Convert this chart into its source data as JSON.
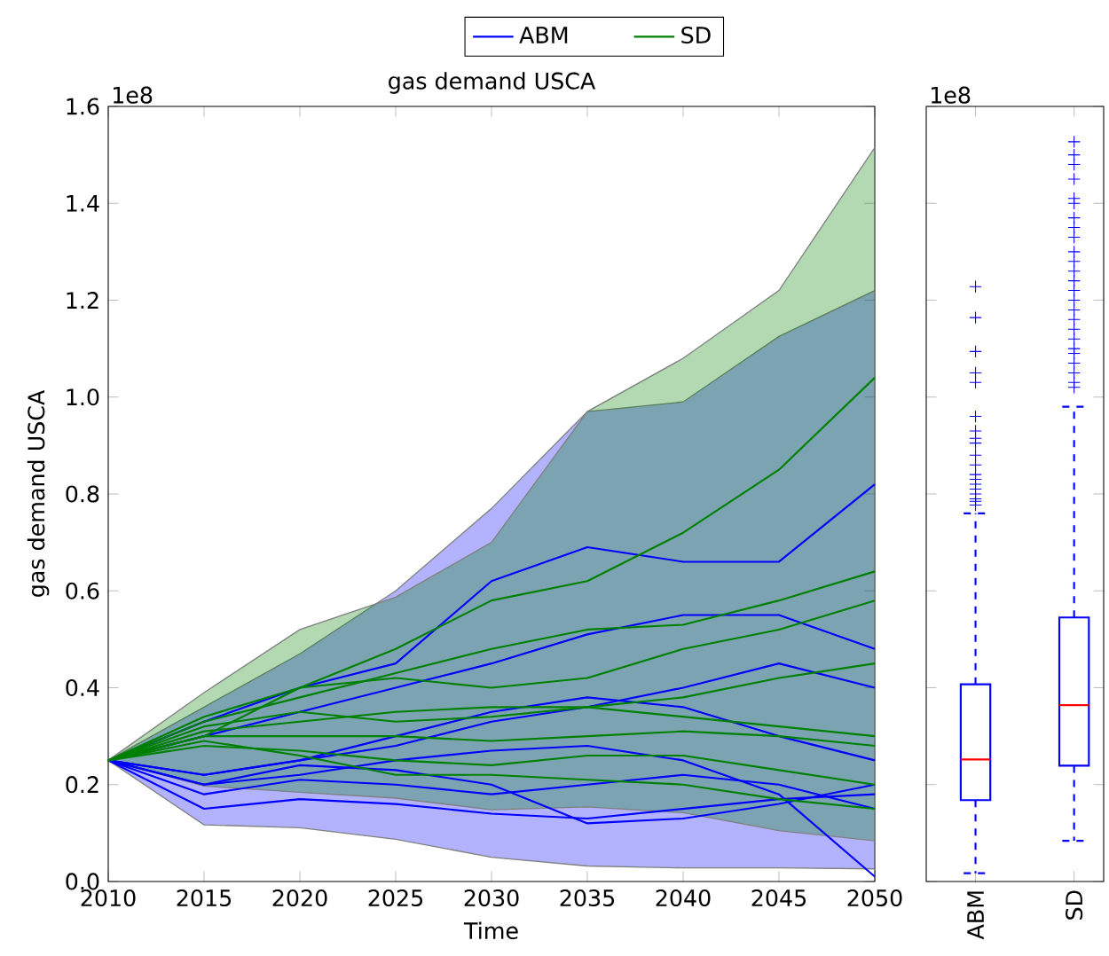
{
  "chart_data": [
    {
      "type": "line",
      "title": "gas demand USCA",
      "xlabel": "Time",
      "ylabel": "gas demand USCA",
      "annotations": [
        "1e8"
      ],
      "legend": "top",
      "xlim": [
        2010,
        2050
      ],
      "xticks": [
        2010,
        2015,
        2020,
        2025,
        2030,
        2035,
        2040,
        2045,
        2050
      ],
      "ylim": [
        0,
        1.6
      ],
      "yticks": [
        {
          "value": 0,
          "label": "0.0"
        },
        0.2,
        0.4,
        0.6,
        0.8,
        {
          "value": 1,
          "label": "1.0"
        },
        1.2,
        1.4,
        1.6
      ],
      "series": [
        {
          "name": "ABM",
          "color": "#0000ff",
          "x": [
            2010,
            2015,
            2020,
            2025,
            2030,
            2035,
            2040,
            2045,
            2050
          ],
          "values": [
            0.25,
            0.33,
            0.4,
            0.45,
            0.62,
            0.69,
            0.66,
            0.66,
            0.82
          ],
          "lower": [
            0.25,
            0.117,
            0.111,
            0.087,
            0.05,
            0.032,
            0.028,
            0.028,
            0.026
          ],
          "upper": [
            0.25,
            0.36,
            0.47,
            0.6,
            0.77,
            0.97,
            0.99,
            1.125,
            1.22
          ]
        },
        {
          "color": "#0000ff",
          "x": [
            2010,
            2015,
            2020,
            2025,
            2030,
            2035,
            2040,
            2045,
            2050
          ],
          "values": [
            0.25,
            0.3,
            0.35,
            0.4,
            0.45,
            0.51,
            0.55,
            0.55,
            0.48
          ]
        },
        {
          "color": "#0000ff",
          "x": [
            2010,
            2015,
            2020,
            2025,
            2030,
            2035,
            2040,
            2045,
            2050
          ],
          "values": [
            0.25,
            0.22,
            0.25,
            0.28,
            0.33,
            0.36,
            0.4,
            0.45,
            0.4
          ]
        },
        {
          "color": "#0000ff",
          "x": [
            2010,
            2015,
            2020,
            2025,
            2030,
            2035,
            2040,
            2045,
            2050
          ],
          "values": [
            0.25,
            0.2,
            0.22,
            0.25,
            0.27,
            0.28,
            0.25,
            0.18,
            0.01
          ]
        },
        {
          "color": "#0000ff",
          "x": [
            2010,
            2015,
            2020,
            2025,
            2030,
            2035,
            2040,
            2045,
            2050
          ],
          "values": [
            0.25,
            0.18,
            0.21,
            0.2,
            0.18,
            0.2,
            0.22,
            0.2,
            0.15
          ]
        },
        {
          "color": "#0000ff",
          "x": [
            2010,
            2015,
            2020,
            2025,
            2030,
            2035,
            2040,
            2045,
            2050
          ],
          "values": [
            0.25,
            0.15,
            0.17,
            0.16,
            0.14,
            0.13,
            0.15,
            0.17,
            0.18
          ]
        },
        {
          "color": "#0000ff",
          "x": [
            2010,
            2015,
            2020,
            2025,
            2030,
            2035,
            2040,
            2045,
            2050
          ],
          "values": [
            0.25,
            0.2,
            0.24,
            0.23,
            0.2,
            0.12,
            0.13,
            0.16,
            0.2
          ]
        },
        {
          "color": "#0000ff",
          "x": [
            2010,
            2015,
            2020,
            2025,
            2030,
            2035,
            2040,
            2045,
            2050
          ],
          "values": [
            0.25,
            0.22,
            0.25,
            0.3,
            0.35,
            0.38,
            0.36,
            0.3,
            0.25
          ]
        },
        {
          "name": "SD",
          "color": "#008000",
          "x": [
            2010,
            2015,
            2020,
            2025,
            2030,
            2035,
            2040,
            2045,
            2050
          ],
          "values": [
            0.25,
            0.3,
            0.4,
            0.48,
            0.58,
            0.62,
            0.72,
            0.85,
            1.04
          ],
          "lower": [
            0.25,
            0.197,
            0.184,
            0.172,
            0.148,
            0.154,
            0.142,
            0.105,
            0.084
          ],
          "upper": [
            0.25,
            0.39,
            0.52,
            0.587,
            0.7,
            0.97,
            1.08,
            1.22,
            1.515
          ]
        },
        {
          "color": "#008000",
          "x": [
            2010,
            2015,
            2020,
            2025,
            2030,
            2035,
            2040,
            2045,
            2050
          ],
          "values": [
            0.25,
            0.33,
            0.38,
            0.43,
            0.48,
            0.52,
            0.53,
            0.58,
            0.64
          ]
        },
        {
          "color": "#008000",
          "x": [
            2010,
            2015,
            2020,
            2025,
            2030,
            2035,
            2040,
            2045,
            2050
          ],
          "values": [
            0.25,
            0.34,
            0.4,
            0.42,
            0.4,
            0.42,
            0.48,
            0.52,
            0.58
          ]
        },
        {
          "color": "#008000",
          "x": [
            2010,
            2015,
            2020,
            2025,
            2030,
            2035,
            2040,
            2045,
            2050
          ],
          "values": [
            0.25,
            0.32,
            0.35,
            0.33,
            0.34,
            0.36,
            0.38,
            0.42,
            0.45
          ]
        },
        {
          "color": "#008000",
          "x": [
            2010,
            2015,
            2020,
            2025,
            2030,
            2035,
            2040,
            2045,
            2050
          ],
          "values": [
            0.25,
            0.3,
            0.3,
            0.3,
            0.29,
            0.3,
            0.31,
            0.3,
            0.28
          ]
        },
        {
          "color": "#008000",
          "x": [
            2010,
            2015,
            2020,
            2025,
            2030,
            2035,
            2040,
            2045,
            2050
          ],
          "values": [
            0.25,
            0.28,
            0.27,
            0.25,
            0.24,
            0.26,
            0.26,
            0.23,
            0.2
          ]
        },
        {
          "color": "#008000",
          "x": [
            2010,
            2015,
            2020,
            2025,
            2030,
            2035,
            2040,
            2045,
            2050
          ],
          "values": [
            0.25,
            0.29,
            0.26,
            0.22,
            0.22,
            0.21,
            0.2,
            0.17,
            0.15
          ]
        },
        {
          "color": "#008000",
          "x": [
            2010,
            2015,
            2020,
            2025,
            2030,
            2035,
            2040,
            2045,
            2050
          ],
          "values": [
            0.25,
            0.31,
            0.33,
            0.35,
            0.36,
            0.36,
            0.34,
            0.32,
            0.3
          ]
        }
      ]
    },
    {
      "type": "box",
      "annotations": [
        "1e8"
      ],
      "categories": [
        "ABM",
        "SD"
      ],
      "color": "#0000ff",
      "tick_labels": "x",
      "ylim": [
        0,
        1.6
      ],
      "yticks": [
        0,
        0.2,
        0.4,
        0.6,
        0.8,
        1,
        1.2,
        1.4,
        1.6
      ],
      "boxes": [
        {
          "low": 0.017,
          "q1": 0.168,
          "median": 0.252,
          "q3": 0.407,
          "high": 0.76,
          "outliers": [
            0.777,
            0.785,
            0.79,
            0.8,
            0.81,
            0.82,
            0.83,
            0.84,
            0.86,
            0.88,
            0.905,
            0.915,
            0.93,
            0.96,
            1.03,
            1.05,
            1.094,
            1.164,
            1.228
          ]
        },
        {
          "low": 0.084,
          "q1": 0.239,
          "median": 0.364,
          "q3": 0.545,
          "high": 0.98,
          "outliers": [
            1.02,
            1.03,
            1.05,
            1.07,
            1.09,
            1.1,
            1.12,
            1.14,
            1.16,
            1.18,
            1.2,
            1.22,
            1.24,
            1.26,
            1.28,
            1.3,
            1.33,
            1.35,
            1.37,
            1.4,
            1.41,
            1.45,
            1.48,
            1.5,
            1.527
          ]
        }
      ]
    }
  ]
}
